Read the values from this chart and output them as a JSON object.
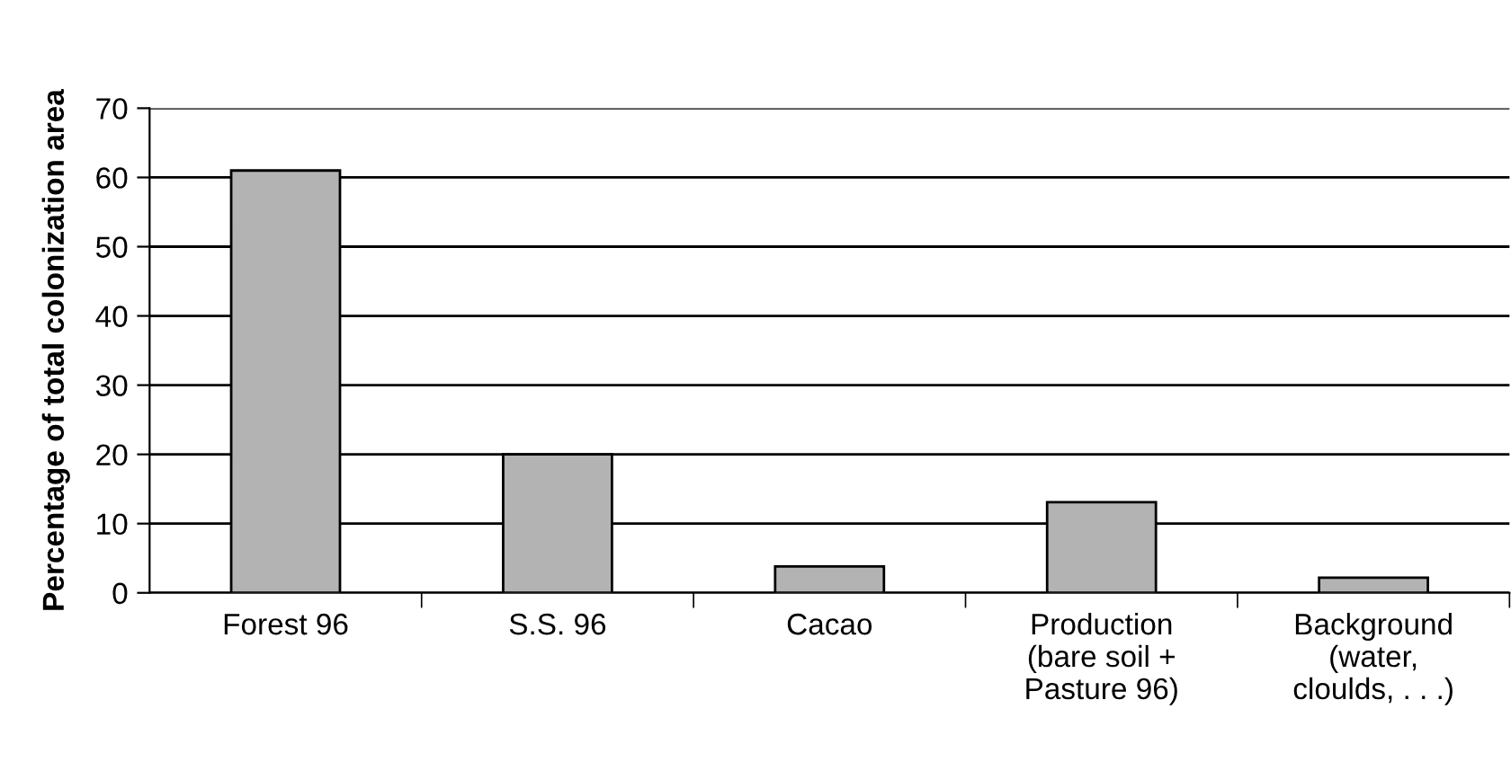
{
  "chart_data": {
    "type": "bar",
    "ylabel": "Percentage of total colonization area",
    "categories": [
      "Forest 96",
      "S.S. 96",
      "Cacao",
      "Production\n(bare soil +\nPasture 96)",
      "Background\n(water,\ncloulds, . . .)"
    ],
    "values": [
      61,
      20,
      3.8,
      13.1,
      2.2
    ],
    "color": "#b3b3b3",
    "ylim": [
      0,
      70
    ],
    "yticks": [
      0,
      10,
      20,
      30,
      40,
      50,
      60,
      70
    ],
    "grid": "y"
  }
}
